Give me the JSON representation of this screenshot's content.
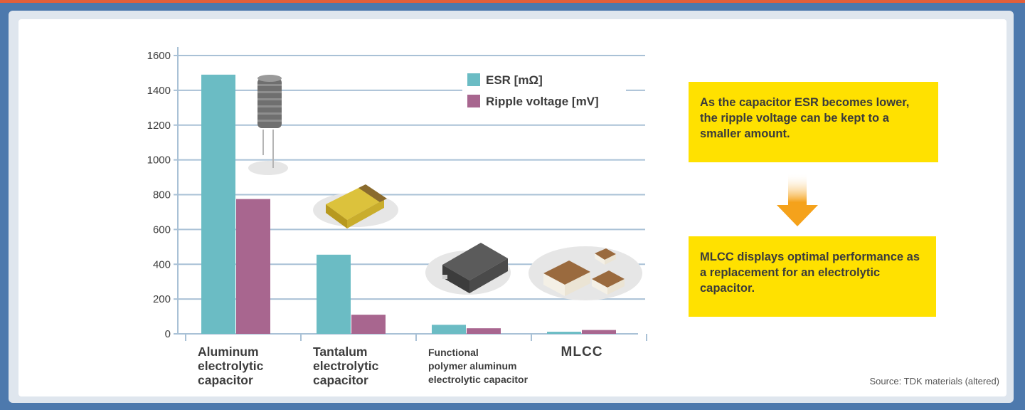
{
  "chart_data": {
    "type": "bar",
    "categories": [
      [
        "Aluminum",
        "electrolytic",
        "capacitor"
      ],
      [
        "Tantalum",
        "electrolytic",
        "capacitor"
      ],
      [
        "Functional",
        "polymer aluminum",
        "electrolytic capacitor"
      ],
      [
        "MLCC"
      ]
    ],
    "series": [
      {
        "name": "ESR [mΩ]",
        "color": "#6bbcc4",
        "values": [
          1490,
          455,
          52,
          12
        ]
      },
      {
        "name": "Ripple voltage [mV]",
        "color": "#a8668f",
        "values": [
          775,
          110,
          32,
          22
        ]
      }
    ],
    "yticks": [
      0,
      200,
      400,
      600,
      800,
      1000,
      1200,
      1400,
      1600
    ],
    "ylim": [
      0,
      1600
    ],
    "grid": true,
    "legend_position": "top-right"
  },
  "notes": {
    "callout_1": "As the capacitor ESR becomes lower, the ripple voltage can be kept to a smaller amount.",
    "callout_2": "MLCC displays optimal performance as a replacement for an electrolytic capacitor.",
    "arrow_icon": "down-arrow-icon",
    "arrow_color": "#f5a21b"
  },
  "source": "Source: TDK materials (altered)"
}
